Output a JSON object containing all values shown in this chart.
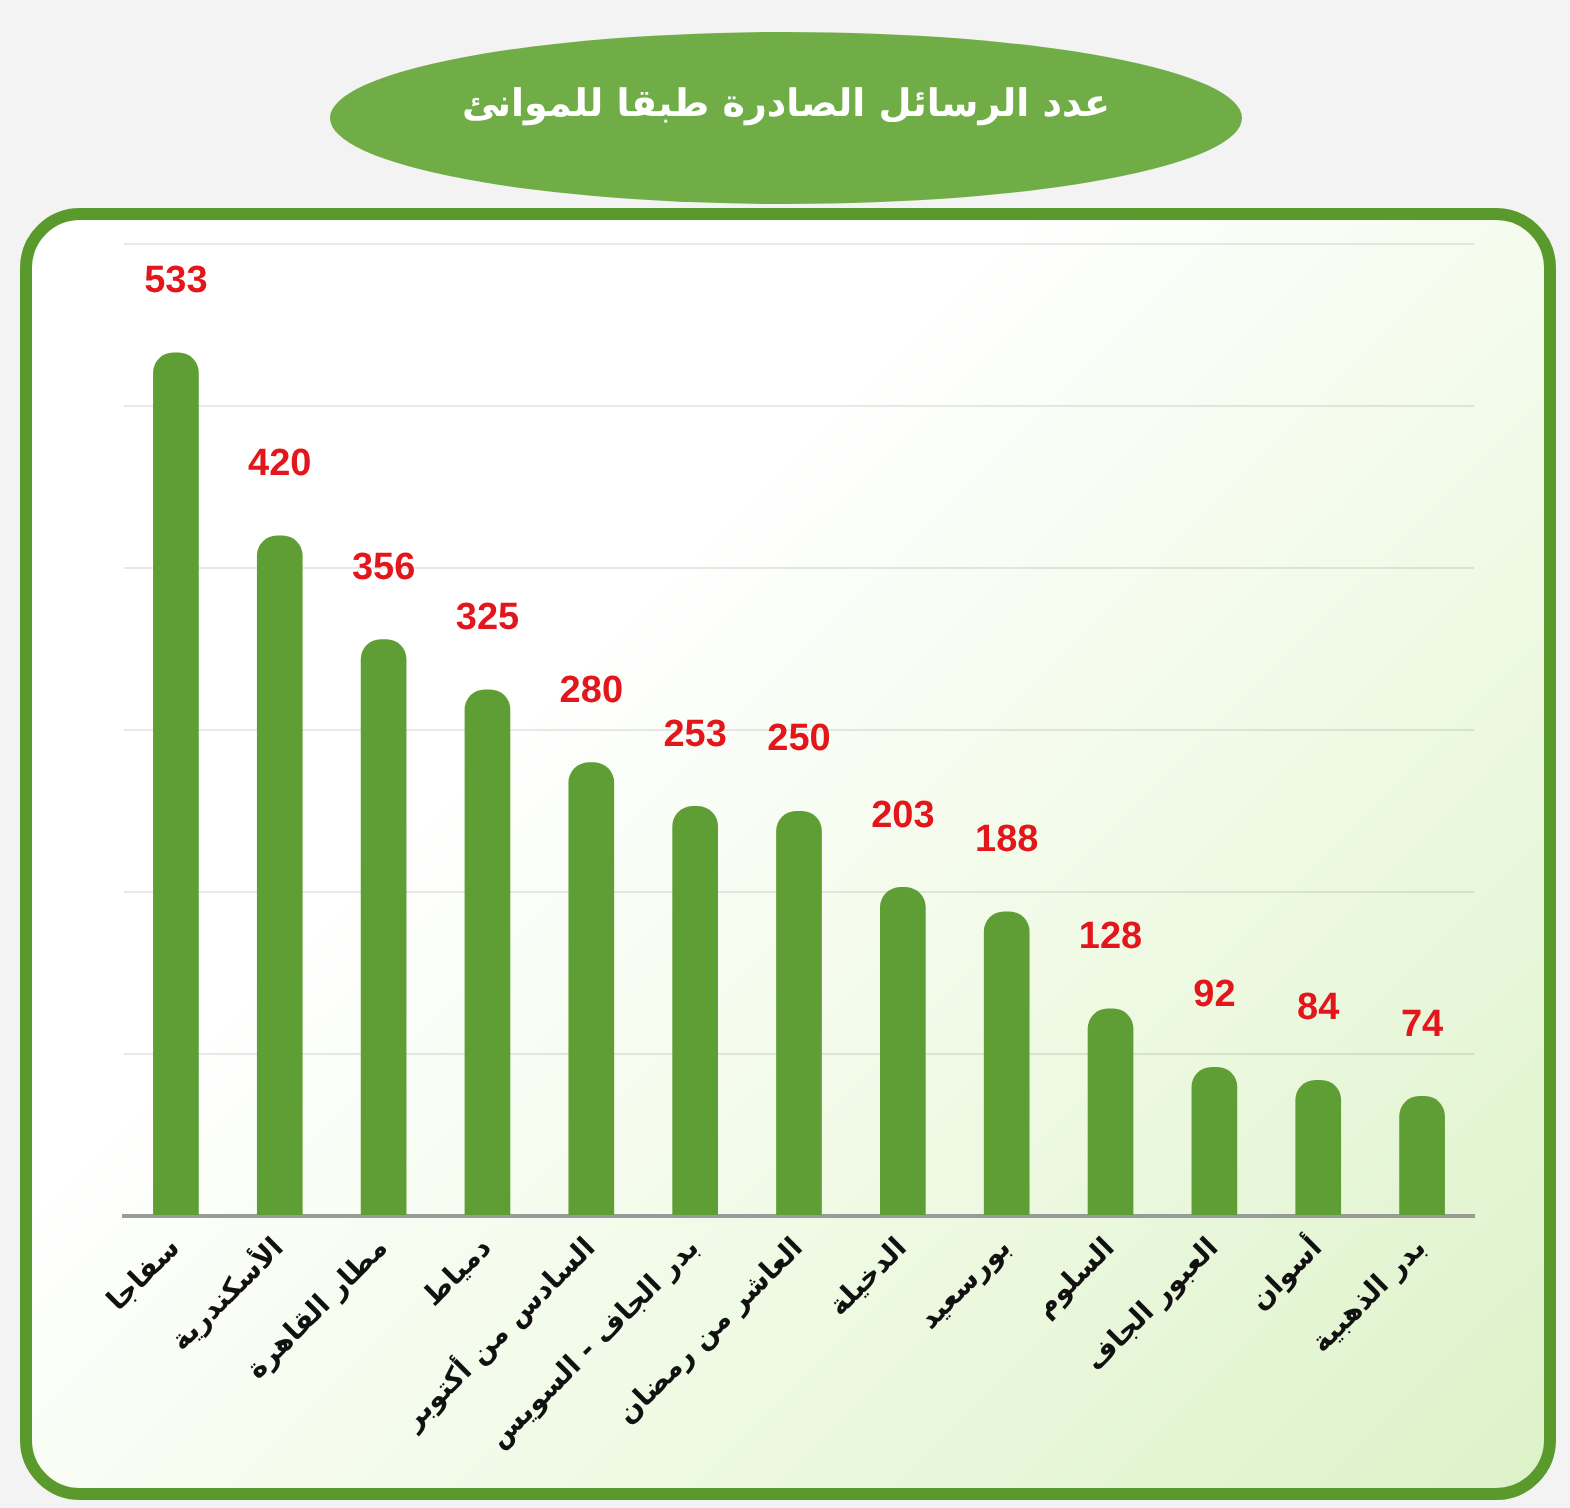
{
  "chart_data": {
    "type": "bar",
    "title": "عدد الرسائل الصادرة طبقا للموانئ",
    "categories": [
      "سفاجا",
      "الأسكندرية",
      "مطار القاهرة",
      "دمياط",
      "السادس من أكتوبر",
      "بدر الجاف - السويس",
      "العاشر من رمضان",
      "الدخيلة",
      "بورسعيد",
      "السلوم",
      "العبور الجاف",
      "أسوان",
      "بدر الذهبية"
    ],
    "values": [
      533,
      420,
      356,
      325,
      280,
      253,
      250,
      203,
      188,
      128,
      92,
      84,
      74
    ],
    "color": "#5e9e34",
    "ylim": [
      0,
      600
    ],
    "yticks": [
      {
        "value": 0,
        "label": null
      },
      {
        "value": 100,
        "label": null
      },
      {
        "value": 200,
        "label": null
      },
      {
        "value": 300,
        "label": null
      },
      {
        "value": 400,
        "label": null
      },
      {
        "value": 500,
        "label": null
      },
      {
        "value": 600,
        "label": null
      }
    ],
    "grid": "y",
    "tick_labels": "x",
    "data_labels": true
  }
}
